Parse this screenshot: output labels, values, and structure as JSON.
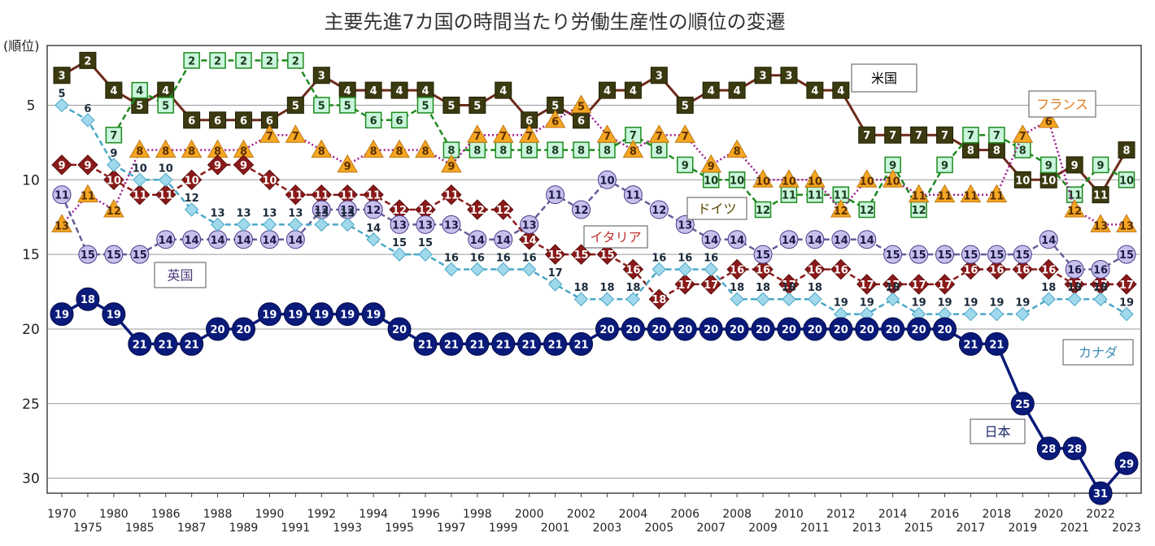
{
  "chart_data": {
    "type": "line",
    "title": "主要先進7カ国の時間当たり労働生産性の順位の変遷",
    "ylabel": "(順位)",
    "ylim": [
      31,
      1
    ],
    "ytick_values": [
      5,
      10,
      15,
      20,
      25,
      30
    ],
    "x": [
      1970,
      1975,
      1980,
      1985,
      1986,
      1987,
      1988,
      1989,
      1990,
      1991,
      1992,
      1993,
      1994,
      1995,
      1996,
      1997,
      1998,
      1999,
      2000,
      2001,
      2002,
      2003,
      2004,
      2005,
      2006,
      2007,
      2008,
      2009,
      2010,
      2011,
      2012,
      2013,
      2014,
      2015,
      2016,
      2017,
      2018,
      2019,
      2020,
      2021,
      2022,
      2023
    ],
    "x_tick_labels": [
      "1970",
      "1975",
      "1980",
      "1985",
      "1986",
      "1987",
      "1988",
      "1989",
      "1990",
      "1991",
      "1992",
      "1993",
      "1994",
      "1995",
      "1996",
      "1997",
      "1998",
      "1999",
      "2000",
      "2001",
      "2002",
      "2003",
      "2004",
      "2005",
      "2006",
      "2007",
      "2008",
      "2009",
      "2010",
      "2011",
      "2012",
      "2013",
      "2014",
      "2015",
      "2016",
      "2017",
      "2018",
      "2019",
      "2020",
      "2021",
      "2022",
      "2023"
    ],
    "grid": true,
    "series": [
      {
        "name": "米国",
        "color": "#6b2a1a",
        "marker": "square-dark",
        "marker_fill": "#3b3a10",
        "line_style": "solid",
        "values": [
          3,
          2,
          4,
          5,
          4,
          6,
          6,
          6,
          6,
          5,
          3,
          4,
          4,
          4,
          4,
          5,
          5,
          4,
          6,
          5,
          6,
          4,
          4,
          3,
          5,
          4,
          4,
          3,
          3,
          4,
          4,
          7,
          7,
          7,
          7,
          8,
          8,
          10,
          10,
          9,
          11,
          8
        ]
      },
      {
        "name": "ドイツ",
        "color": "#1e8a1e",
        "marker": "square-light",
        "marker_fill": "#c8f5dc",
        "line_style": "dashed",
        "values": [
          null,
          null,
          7,
          4,
          5,
          2,
          2,
          2,
          2,
          2,
          5,
          5,
          6,
          6,
          5,
          8,
          8,
          8,
          8,
          8,
          8,
          8,
          7,
          8,
          9,
          10,
          10,
          12,
          11,
          11,
          11,
          12,
          9,
          12,
          9,
          7,
          7,
          8,
          9,
          11,
          9,
          10
        ]
      },
      {
        "name": "フランス",
        "color": "#a01c8c",
        "marker": "triangle",
        "marker_fill": "#f5a623",
        "line_style": "dotted",
        "values": [
          13,
          11,
          12,
          8,
          8,
          8,
          8,
          8,
          7,
          7,
          8,
          9,
          8,
          8,
          8,
          9,
          7,
          7,
          7,
          6,
          5,
          7,
          8,
          7,
          7,
          9,
          8,
          10,
          10,
          10,
          12,
          10,
          10,
          11,
          11,
          11,
          11,
          7,
          6,
          12,
          13,
          13
        ]
      },
      {
        "name": "イタリア",
        "color": "#8b1a1a",
        "marker": "diamond",
        "marker_fill": "#8b1a1a",
        "line_style": "dashed",
        "values": [
          9,
          9,
          10,
          11,
          11,
          10,
          9,
          9,
          10,
          11,
          11,
          11,
          11,
          12,
          12,
          11,
          12,
          12,
          14,
          15,
          15,
          15,
          16,
          18,
          17,
          17,
          16,
          16,
          17,
          16,
          16,
          17,
          17,
          17,
          17,
          16,
          16,
          16,
          16,
          17,
          17,
          17
        ]
      },
      {
        "name": "英国",
        "color": "#6a5a9a",
        "marker": "circle",
        "marker_fill": "#c8c0ec",
        "line_style": "dashed",
        "values": [
          11,
          15,
          15,
          15,
          14,
          14,
          14,
          14,
          14,
          14,
          12,
          12,
          12,
          13,
          13,
          13,
          14,
          14,
          13,
          11,
          12,
          10,
          11,
          12,
          13,
          14,
          14,
          15,
          14,
          14,
          14,
          14,
          15,
          15,
          15,
          15,
          15,
          15,
          14,
          16,
          16,
          15
        ]
      },
      {
        "name": "カナダ",
        "color": "#4aa8c8",
        "marker": "diamond-small",
        "marker_fill": "#a0d8ec",
        "line_style": "dashed",
        "values": [
          5,
          6,
          9,
          10,
          10,
          12,
          13,
          13,
          13,
          13,
          13,
          13,
          14,
          15,
          15,
          16,
          16,
          16,
          16,
          17,
          18,
          18,
          18,
          16,
          16,
          16,
          18,
          18,
          18,
          18,
          19,
          19,
          18,
          19,
          19,
          19,
          19,
          19,
          18,
          18,
          18,
          19
        ]
      },
      {
        "name": "日本",
        "color": "#0a1a7a",
        "marker": "circle-big",
        "marker_fill": "#0a1a7a",
        "line_style": "solid",
        "values": [
          19,
          18,
          19,
          21,
          21,
          21,
          20,
          20,
          19,
          19,
          19,
          19,
          19,
          20,
          21,
          21,
          21,
          21,
          21,
          21,
          21,
          20,
          20,
          20,
          20,
          20,
          20,
          20,
          20,
          20,
          20,
          20,
          20,
          20,
          20,
          21,
          21,
          25,
          28,
          28,
          31,
          29
        ]
      }
    ],
    "legend": [
      {
        "name": "米国",
        "text_color": "#000000",
        "position": "upper-right"
      },
      {
        "name": "フランス",
        "text_color": "#e07818",
        "position": "right"
      },
      {
        "name": "ドイツ",
        "text_color": "#5a4a00",
        "position": "middle"
      },
      {
        "name": "イタリア",
        "text_color": "#c03030",
        "position": "middle"
      },
      {
        "name": "英国",
        "text_color": "#4a3a7a",
        "position": "left"
      },
      {
        "name": "カナダ",
        "text_color": "#3a8ab0",
        "position": "right"
      },
      {
        "name": "日本",
        "text_color": "#1a2a6a",
        "position": "lower-right"
      }
    ]
  }
}
